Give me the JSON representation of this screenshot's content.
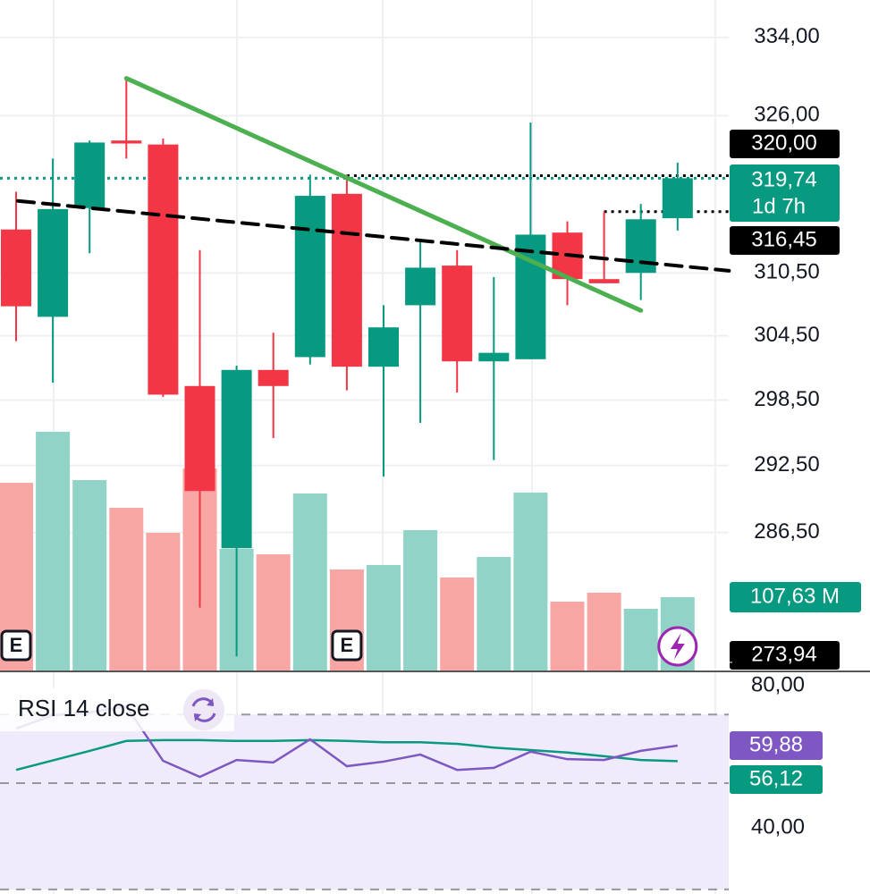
{
  "chart_data": [
    {
      "type": "candlestick",
      "categories": [
        null,
        null,
        null,
        null,
        null,
        null,
        null,
        null,
        null,
        null,
        null,
        null,
        null,
        null,
        null,
        null,
        null,
        null,
        null
      ],
      "open": [
        314.7,
        306.3,
        316.8,
        323.5,
        323.1,
        299.8,
        285.1,
        301.3,
        302.5,
        318.2,
        301.6,
        307.4,
        311.2,
        302.1,
        302.3,
        314.4,
        309.9,
        310.5,
        315.8
      ],
      "high": [
        318.4,
        321.7,
        323.5,
        329.8,
        323.7,
        312.7,
        301.7,
        304.8,
        320.1,
        320.1,
        307.4,
        313.6,
        312.7,
        310.1,
        325.3,
        315.5,
        316.45,
        317.2,
        321.3
      ],
      "low": [
        304.0,
        300.1,
        312.4,
        321.7,
        298.8,
        279.9,
        275.7,
        295.0,
        301.8,
        299.4,
        291.5,
        296.4,
        299.2,
        293.0,
        302.3,
        307.4,
        309.5,
        307.9,
        314.6
      ],
      "close": [
        307.3,
        316.7,
        323.3,
        323.2,
        299.0,
        290.2,
        301.3,
        299.8,
        318.0,
        301.6,
        305.3,
        311.0,
        302.1,
        302.9,
        314.2,
        309.9,
        309.5,
        315.7,
        319.74
      ],
      "up_color": "#089981",
      "down_color": "#f23645",
      "volume": {
        "values": [
          275.6,
          350.5,
          279.6,
          238.9,
          202.1,
          296.6,
          178.5,
          170.6,
          259.9,
          148.3,
          154.9,
          206.1,
          136.5,
          166.7,
          261.2,
          101.1,
          114.2,
          90.6,
          107.63
        ],
        "ylim": [
          0,
          984.5
        ],
        "up_color": "#92d3c8",
        "down_color": "#f7a6a4",
        "tag": {
          "value": 107.63,
          "label": "107,63 M",
          "color": "#089981"
        }
      },
      "ylim": [
        274.5,
        337.9
      ],
      "log_scale": true,
      "grid": true,
      "yticks": [
        {
          "value": 334,
          "label": "334,00"
        },
        {
          "value": 326,
          "label": "326,00"
        },
        {
          "value": 310.5,
          "label": "310,50"
        },
        {
          "value": 304.5,
          "label": "304,50"
        },
        {
          "value": 298.5,
          "label": "298,50"
        },
        {
          "value": 292.5,
          "label": "292,50"
        },
        {
          "value": 286.5,
          "label": "286,50"
        }
      ],
      "price_tags": [
        {
          "value": 320,
          "label": "320,00",
          "color": "#000000"
        },
        {
          "value": 319.74,
          "label": "319,74",
          "countdown": "1d 7h",
          "color": "#089981"
        },
        {
          "value": 316.45,
          "label": "316,45",
          "color": "#000000"
        },
        {
          "value": 273.94,
          "label": "273,94",
          "color": "#000000"
        }
      ],
      "hlines": [
        {
          "value": 319.74,
          "from": -0.5,
          "color": "#089981"
        },
        {
          "value": 320,
          "from": 9,
          "color": "#000000"
        },
        {
          "value": 316.45,
          "from": 16,
          "color": "#000000"
        }
      ],
      "trendlines": [
        {
          "x": [
            3,
            17
          ],
          "y": [
            329.8,
            306.9
          ],
          "color": "#4caf50",
          "style": "solid"
        },
        {
          "x": [
            0.05,
            19.4
          ],
          "y": [
            317.5,
            310.7
          ],
          "color": "#000000",
          "style": "dashed"
        }
      ],
      "markers": [
        {
          "x": 0,
          "label": "E"
        },
        {
          "x": 9,
          "label": "E"
        }
      ]
    },
    {
      "type": "line",
      "title": "RSI 14 close",
      "categories": [
        null,
        null,
        null,
        null,
        null,
        null,
        null,
        null,
        null,
        null,
        null,
        null,
        null,
        null,
        null,
        null,
        null,
        null,
        null
      ],
      "series": [
        {
          "color": "#7e57c2",
          "values": [
            64.0,
            67.2,
            67.9,
            69.4,
            56.2,
            52.3,
            56.4,
            55.8,
            61.4,
            54.9,
            56.0,
            57.7,
            54.0,
            54.5,
            58.4,
            56.6,
            56.4,
            58.6,
            59.88
          ],
          "tag": "59,88"
        },
        {
          "color": "#089981",
          "values": [
            54.0,
            56.3,
            58.6,
            61.0,
            61.2,
            61.2,
            61.0,
            61.0,
            61.2,
            61.0,
            60.7,
            60.7,
            60.3,
            59.4,
            58.8,
            58.2,
            57.3,
            56.4,
            56.12
          ],
          "tag": "56,12"
        }
      ],
      "ylim": [
        24.0,
        77.6
      ],
      "yticks": [
        {
          "value": 80,
          "label": "80,00"
        },
        {
          "value": 40,
          "label": "40,00"
        }
      ],
      "levels": [
        67.4,
        50.8,
        25.1
      ],
      "band_color": "#efebfa"
    }
  ]
}
